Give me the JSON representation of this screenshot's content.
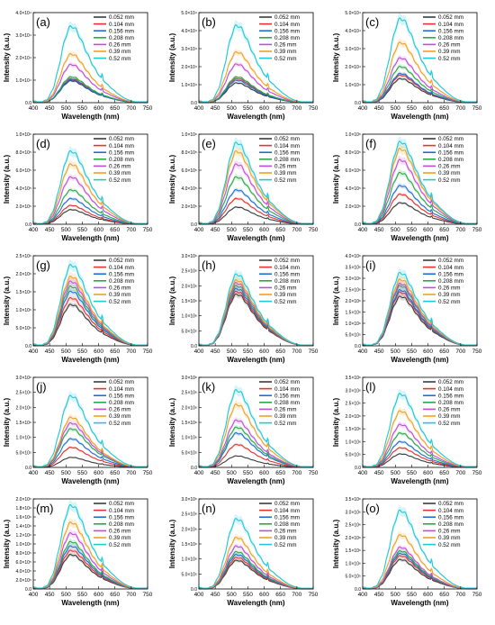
{
  "figure": {
    "series_names": [
      "0.052 mm",
      "0.104 mm",
      "0.156 mm",
      "0.208 mm",
      "0.26 mm",
      "0.39 mm",
      "0.52 mm"
    ],
    "series_colors": [
      "#3c3c3c",
      "#e8332f",
      "#1f6fd8",
      "#2aa84a",
      "#c04dd8",
      "#f0a020",
      "#1ec8d8"
    ],
    "xlabel": "Wavelength (nm)",
    "ylabel": "Intensity (a.u.)",
    "x_ticks": [
      "400",
      "450",
      "500",
      "550",
      "600",
      "650",
      "700",
      "750"
    ]
  },
  "chart_data": [
    {
      "panel_label": "(a)",
      "type": "line",
      "ylim": [
        0,
        4.5
      ],
      "y_ticks": [
        "0.0",
        "1.0×10⁴",
        "2.0×10⁴",
        "3.0×10⁴",
        "4.0×10⁴"
      ],
      "x": [
        400,
        450,
        500,
        550,
        600,
        650,
        700,
        750
      ],
      "series": [
        {
          "name": "0.052 mm",
          "peak": 1.15
        },
        {
          "name": "0.104 mm",
          "peak": 1.25
        },
        {
          "name": "0.156 mm",
          "peak": 1.2
        },
        {
          "name": "0.208 mm",
          "peak": 1.35
        },
        {
          "name": "0.26 mm",
          "peak": 2.0
        },
        {
          "name": "0.39 mm",
          "peak": 2.55
        },
        {
          "name": "0.52 mm",
          "peak": 4.0
        }
      ]
    },
    {
      "panel_label": "(b)",
      "type": "line",
      "ylim": [
        0,
        5.0
      ],
      "y_ticks": [
        "0.0",
        "1.0×10⁴",
        "2.0×10⁴",
        "3.0×10⁴",
        "4.0×10⁴",
        "5.0×10⁴"
      ],
      "x": [
        400,
        450,
        500,
        550,
        600,
        650,
        700,
        750
      ],
      "series": [
        {
          "name": "0.052 mm",
          "peak": 1.15
        },
        {
          "name": "0.104 mm",
          "peak": 1.4
        },
        {
          "name": "0.156 mm",
          "peak": 1.3
        },
        {
          "name": "0.208 mm",
          "peak": 1.5
        },
        {
          "name": "0.26 mm",
          "peak": 2.25
        },
        {
          "name": "0.39 mm",
          "peak": 2.95
        },
        {
          "name": "0.52 mm",
          "peak": 4.5
        }
      ]
    },
    {
      "panel_label": "(c)",
      "type": "line",
      "ylim": [
        0,
        5.0
      ],
      "y_ticks": [
        "0.0",
        "1.0×10⁴",
        "2.0×10⁴",
        "3.0×10⁴",
        "4.0×10⁴",
        "5.0×10⁴"
      ],
      "x": [
        400,
        450,
        500,
        550,
        600,
        650,
        700,
        750
      ],
      "series": [
        {
          "name": "0.052 mm",
          "peak": 1.4
        },
        {
          "name": "0.104 mm",
          "peak": 1.6
        },
        {
          "name": "0.156 mm",
          "peak": 1.7
        },
        {
          "name": "0.208 mm",
          "peak": 2.1
        },
        {
          "name": "0.26 mm",
          "peak": 2.6
        },
        {
          "name": "0.39 mm",
          "peak": 3.5
        },
        {
          "name": "0.52 mm",
          "peak": 4.9
        }
      ]
    },
    {
      "panel_label": "(d)",
      "type": "line",
      "ylim": [
        0,
        10.0
      ],
      "y_ticks": [
        "0.0",
        "2.0×10⁵",
        "4.0×10⁵",
        "6.0×10⁵",
        "8.0×10⁵",
        "1.0×10⁶"
      ],
      "x": [
        400,
        450,
        500,
        550,
        600,
        650,
        700,
        750
      ],
      "series": [
        {
          "name": "0.052 mm",
          "peak": 1.7
        },
        {
          "name": "0.104 mm",
          "peak": 2.2
        },
        {
          "name": "0.156 mm",
          "peak": 3.0
        },
        {
          "name": "0.208 mm",
          "peak": 4.0
        },
        {
          "name": "0.26 mm",
          "peak": 5.5
        },
        {
          "name": "0.39 mm",
          "peak": 7.0
        },
        {
          "name": "0.52 mm",
          "peak": 8.5
        }
      ]
    },
    {
      "panel_label": "(e)",
      "type": "line",
      "ylim": [
        0,
        10.0
      ],
      "y_ticks": [
        "0.0",
        "2.0×10⁵",
        "4.0×10⁵",
        "6.0×10⁵",
        "8.0×10⁵",
        "1.0×10⁶"
      ],
      "x": [
        400,
        450,
        500,
        550,
        600,
        650,
        700,
        750
      ],
      "series": [
        {
          "name": "0.052 mm",
          "peak": 2.0
        },
        {
          "name": "0.104 mm",
          "peak": 3.0
        },
        {
          "name": "0.156 mm",
          "peak": 4.0
        },
        {
          "name": "0.208 mm",
          "peak": 5.5
        },
        {
          "name": "0.26 mm",
          "peak": 7.0
        },
        {
          "name": "0.39 mm",
          "peak": 8.5
        },
        {
          "name": "0.52 mm",
          "peak": 9.5
        }
      ]
    },
    {
      "panel_label": "(f)",
      "type": "line",
      "ylim": [
        0,
        10.0
      ],
      "y_ticks": [
        "0.0",
        "2.0×10⁵",
        "4.0×10⁵",
        "6.0×10⁵",
        "8.0×10⁵",
        "1.0×10⁶"
      ],
      "x": [
        400,
        450,
        500,
        550,
        600,
        650,
        700,
        750
      ],
      "series": [
        {
          "name": "0.052 mm",
          "peak": 2.5
        },
        {
          "name": "0.104 mm",
          "peak": 3.5
        },
        {
          "name": "0.156 mm",
          "peak": 4.5
        },
        {
          "name": "0.208 mm",
          "peak": 6.0
        },
        {
          "name": "0.26 mm",
          "peak": 7.5
        },
        {
          "name": "0.39 mm",
          "peak": 8.8
        },
        {
          "name": "0.52 mm",
          "peak": 9.6
        }
      ]
    },
    {
      "panel_label": "(g)",
      "type": "line",
      "ylim": [
        0,
        2.6
      ],
      "y_ticks": [
        "0.0",
        "5.0×10⁵",
        "1.0×10⁶",
        "1.5×10⁶",
        "2.0×10⁶",
        "2.5×10⁶"
      ],
      "x": [
        400,
        450,
        500,
        550,
        600,
        650,
        700,
        750
      ],
      "series": [
        {
          "name": "0.052 mm",
          "peak": 1.25
        },
        {
          "name": "0.104 mm",
          "peak": 1.45
        },
        {
          "name": "0.156 mm",
          "peak": 1.65
        },
        {
          "name": "0.208 mm",
          "peak": 1.8
        },
        {
          "name": "0.26 mm",
          "peak": 1.95
        },
        {
          "name": "0.39 mm",
          "peak": 2.1
        },
        {
          "name": "0.52 mm",
          "peak": 2.45
        }
      ]
    },
    {
      "panel_label": "(h)",
      "type": "line",
      "ylim": [
        0,
        3.0
      ],
      "y_ticks": [
        "0.0",
        "5.0×10⁵",
        "1.0×10⁶",
        "1.5×10⁶",
        "2.0×10⁶",
        "2.5×10⁶",
        "3.0×10⁶"
      ],
      "x": [
        400,
        450,
        500,
        550,
        600,
        650,
        700,
        750
      ],
      "series": [
        {
          "name": "0.052 mm",
          "peak": 1.8
        },
        {
          "name": "0.104 mm",
          "peak": 1.9
        },
        {
          "name": "0.156 mm",
          "peak": 2.0
        },
        {
          "name": "0.208 mm",
          "peak": 2.1
        },
        {
          "name": "0.26 mm",
          "peak": 2.2
        },
        {
          "name": "0.39 mm",
          "peak": 2.3
        },
        {
          "name": "0.52 mm",
          "peak": 2.5
        }
      ]
    },
    {
      "panel_label": "(i)",
      "type": "line",
      "ylim": [
        0,
        4.0
      ],
      "y_ticks": [
        "0.0",
        "5.0×10⁵",
        "1.0×10⁶",
        "1.5×10⁶",
        "2.0×10⁶",
        "2.5×10⁶",
        "3.0×10⁶",
        "3.5×10⁶",
        "4.0×10⁶"
      ],
      "x": [
        400,
        450,
        500,
        550,
        600,
        650,
        700,
        750
      ],
      "series": [
        {
          "name": "0.052 mm",
          "peak": 2.3
        },
        {
          "name": "0.104 mm",
          "peak": 2.5
        },
        {
          "name": "0.156 mm",
          "peak": 2.6
        },
        {
          "name": "0.208 mm",
          "peak": 2.8
        },
        {
          "name": "0.26 mm",
          "peak": 2.9
        },
        {
          "name": "0.39 mm",
          "peak": 3.1
        },
        {
          "name": "0.52 mm",
          "peak": 3.4
        }
      ]
    },
    {
      "panel_label": "(j)",
      "type": "line",
      "ylim": [
        0,
        3.0
      ],
      "y_ticks": [
        "0.0",
        "5.0×10⁵",
        "1.0×10⁶",
        "1.5×10⁶",
        "2.0×10⁶",
        "2.5×10⁶",
        "3.0×10⁶"
      ],
      "x": [
        400,
        450,
        500,
        550,
        600,
        650,
        700,
        750
      ],
      "series": [
        {
          "name": "0.052 mm",
          "peak": 0.35
        },
        {
          "name": "0.104 mm",
          "peak": 0.7
        },
        {
          "name": "0.156 mm",
          "peak": 1.0
        },
        {
          "name": "0.208 mm",
          "peak": 1.35
        },
        {
          "name": "0.26 mm",
          "peak": 1.55
        },
        {
          "name": "0.39 mm",
          "peak": 1.75
        },
        {
          "name": "0.52 mm",
          "peak": 2.5
        }
      ]
    },
    {
      "panel_label": "(k)",
      "type": "line",
      "ylim": [
        0,
        3.0
      ],
      "y_ticks": [
        "0.0",
        "5.0×10⁵",
        "1.0×10⁶",
        "1.5×10⁶",
        "2.0×10⁶",
        "2.5×10⁶",
        "3.0×10⁶"
      ],
      "x": [
        400,
        450,
        500,
        550,
        600,
        650,
        700,
        750
      ],
      "series": [
        {
          "name": "0.052 mm",
          "peak": 0.4
        },
        {
          "name": "0.104 mm",
          "peak": 0.8
        },
        {
          "name": "0.156 mm",
          "peak": 1.2
        },
        {
          "name": "0.208 mm",
          "peak": 1.4
        },
        {
          "name": "0.26 mm",
          "peak": 1.65
        },
        {
          "name": "0.39 mm",
          "peak": 2.2
        },
        {
          "name": "0.52 mm",
          "peak": 2.7
        }
      ]
    },
    {
      "panel_label": "(l)",
      "type": "line",
      "ylim": [
        0,
        3.5
      ],
      "y_ticks": [
        "0.0",
        "5.0×10⁵",
        "1.0×10⁶",
        "1.5×10⁶",
        "2.0×10⁶",
        "2.5×10⁶",
        "3.0×10⁶",
        "3.5×10⁶"
      ],
      "x": [
        400,
        450,
        500,
        550,
        600,
        650,
        700,
        750
      ],
      "series": [
        {
          "name": "0.052 mm",
          "peak": 0.55
        },
        {
          "name": "0.104 mm",
          "peak": 0.8
        },
        {
          "name": "0.156 mm",
          "peak": 1.05
        },
        {
          "name": "0.208 mm",
          "peak": 1.4
        },
        {
          "name": "0.26 mm",
          "peak": 1.75
        },
        {
          "name": "0.39 mm",
          "peak": 2.3
        },
        {
          "name": "0.52 mm",
          "peak": 3.0
        }
      ]
    },
    {
      "panel_label": "(m)",
      "type": "line",
      "ylim": [
        0,
        2.0
      ],
      "y_ticks": [
        "0.0",
        "2.0×10⁵",
        "4.0×10⁵",
        "6.0×10⁵",
        "8.0×10⁵",
        "1.0×10⁶",
        "1.2×10⁶",
        "1.4×10⁶",
        "1.6×10⁶",
        "1.8×10⁶",
        "2.0×10⁶"
      ],
      "x": [
        400,
        450,
        500,
        550,
        600,
        650,
        700,
        750
      ],
      "series": [
        {
          "name": "0.052 mm",
          "peak": 0.8
        },
        {
          "name": "0.104 mm",
          "peak": 0.9
        },
        {
          "name": "0.156 mm",
          "peak": 1.0
        },
        {
          "name": "0.208 mm",
          "peak": 1.1
        },
        {
          "name": "0.26 mm",
          "peak": 1.3
        },
        {
          "name": "0.39 mm",
          "peak": 1.55
        },
        {
          "name": "0.52 mm",
          "peak": 1.95
        }
      ]
    },
    {
      "panel_label": "(n)",
      "type": "line",
      "ylim": [
        0,
        3.0
      ],
      "y_ticks": [
        "0.0",
        "5.0×10⁵",
        "1.0×10⁶",
        "1.5×10⁶",
        "2.0×10⁶",
        "2.5×10⁶",
        "3.0×10⁶"
      ],
      "x": [
        400,
        450,
        500,
        550,
        600,
        650,
        700,
        750
      ],
      "series": [
        {
          "name": "0.052 mm",
          "peak": 1.0
        },
        {
          "name": "0.104 mm",
          "peak": 1.1
        },
        {
          "name": "0.156 mm",
          "peak": 1.2
        },
        {
          "name": "0.208 mm",
          "peak": 1.3
        },
        {
          "name": "0.26 mm",
          "peak": 1.5
        },
        {
          "name": "0.39 mm",
          "peak": 1.8
        },
        {
          "name": "0.52 mm",
          "peak": 2.45
        }
      ]
    },
    {
      "panel_label": "(o)",
      "type": "line",
      "ylim": [
        0,
        3.5
      ],
      "y_ticks": [
        "0.0",
        "5.0×10⁵",
        "1.0×10⁶",
        "1.5×10⁶",
        "2.0×10⁶",
        "2.5×10⁶",
        "3.0×10⁶",
        "3.5×10⁶"
      ],
      "x": [
        400,
        450,
        500,
        550,
        600,
        650,
        700,
        750
      ],
      "series": [
        {
          "name": "0.052 mm",
          "peak": 1.2
        },
        {
          "name": "0.104 mm",
          "peak": 1.35
        },
        {
          "name": "0.156 mm",
          "peak": 1.45
        },
        {
          "name": "0.208 mm",
          "peak": 1.55
        },
        {
          "name": "0.26 mm",
          "peak": 1.7
        },
        {
          "name": "0.39 mm",
          "peak": 2.2
        },
        {
          "name": "0.52 mm",
          "peak": 3.2
        }
      ]
    }
  ]
}
